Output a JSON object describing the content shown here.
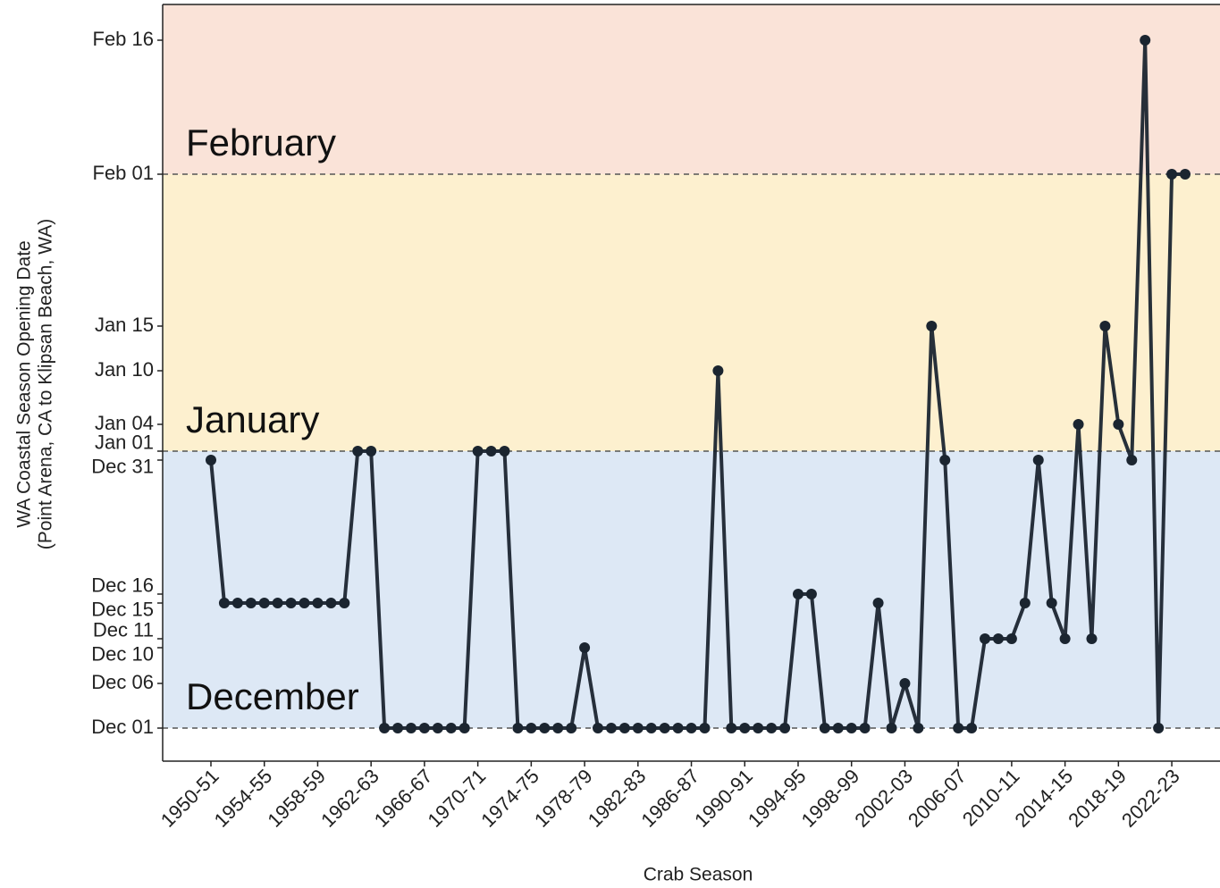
{
  "chart_data": {
    "type": "line",
    "x_label": "Crab Season",
    "y_label": [
      "WA Coastal Season Opening Date",
      "(Point Arena, CA to Klipsan Beach, WA)"
    ],
    "categories": [
      "1950-51",
      null,
      null,
      null,
      "1954-55",
      null,
      null,
      null,
      "1958-59",
      null,
      null,
      null,
      "1962-63",
      null,
      null,
      null,
      "1966-67",
      null,
      null,
      null,
      "1970-71",
      null,
      null,
      null,
      "1974-75",
      null,
      null,
      null,
      "1978-79",
      null,
      null,
      null,
      "1982-83",
      null,
      null,
      null,
      "1986-87",
      null,
      null,
      null,
      "1990-91",
      null,
      null,
      null,
      "1994-95",
      null,
      null,
      null,
      "1998-99",
      null,
      null,
      null,
      "2002-03",
      null,
      null,
      null,
      "2006-07",
      null,
      null,
      null,
      "2010-11",
      null,
      null,
      null,
      "2014-15",
      null,
      null,
      null,
      "2018-19",
      null,
      null,
      null,
      "2022-23",
      null
    ],
    "series": [
      {
        "color": "#1b2530",
        "values": [
          30,
          14,
          14,
          14,
          14,
          14,
          14,
          14,
          14,
          14,
          14,
          31,
          31,
          0,
          0,
          0,
          0,
          0,
          0,
          0,
          31,
          31,
          31,
          0,
          0,
          0,
          0,
          0,
          9,
          0,
          0,
          0,
          0,
          0,
          0,
          0,
          0,
          0,
          40,
          0,
          0,
          0,
          0,
          0,
          15,
          15,
          0,
          0,
          0,
          0,
          14,
          0,
          5,
          0,
          45,
          30,
          0,
          0,
          10,
          10,
          10,
          14,
          30,
          14,
          10,
          34,
          10,
          45,
          34,
          30,
          77,
          0,
          62,
          62
        ]
      }
    ],
    "ylim": [
      -3.7,
      81
    ],
    "yticks": [
      {
        "value": 0,
        "label": "Dec 01"
      },
      {
        "value": 5,
        "label": "Dec 06"
      },
      {
        "value": 9,
        "label": "Dec 10"
      },
      {
        "value": 10,
        "label": "Dec 11"
      },
      {
        "value": 14,
        "label": "Dec 15"
      },
      {
        "value": 15,
        "label": "Dec 16"
      },
      {
        "value": 30,
        "label": "Dec 31"
      },
      {
        "value": 31,
        "label": "Jan 01"
      },
      {
        "value": 34,
        "label": "Jan 04"
      },
      {
        "value": 40,
        "label": "Jan 10"
      },
      {
        "value": 45,
        "label": "Jan 15"
      },
      {
        "value": 62,
        "label": "Feb 01"
      },
      {
        "value": 77,
        "label": "Feb 16"
      }
    ],
    "bands": [
      {
        "label": "December",
        "from": 0,
        "to": 31,
        "color": "#dde8f5"
      },
      {
        "label": "January",
        "from": 31,
        "to": 62,
        "color": "#fdf0cf"
      },
      {
        "label": "February",
        "from": 62,
        "color": "#fae3d8"
      }
    ]
  }
}
